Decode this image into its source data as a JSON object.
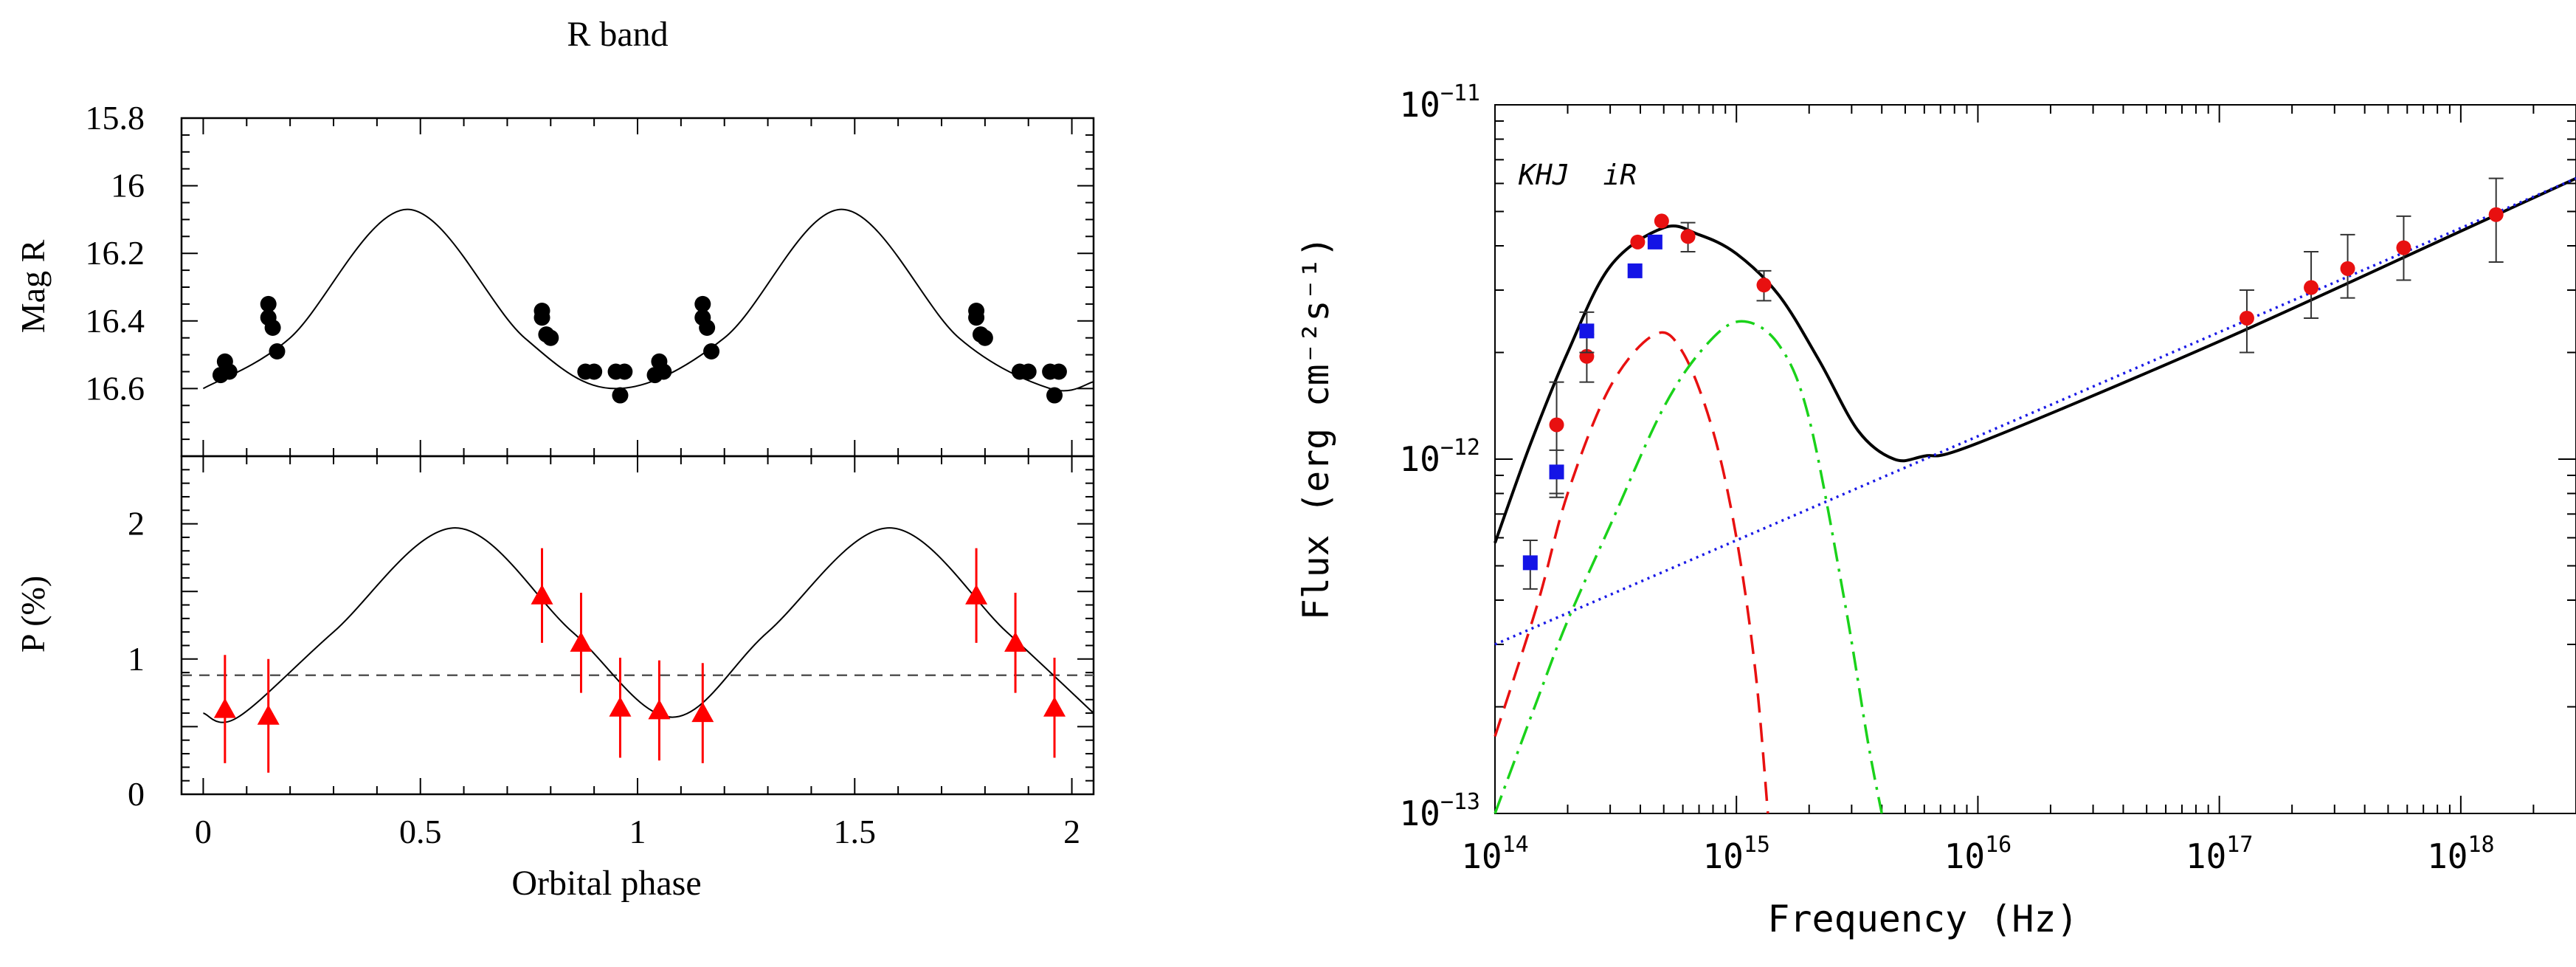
{
  "chart_data": [
    {
      "type": "scatter",
      "title": "R band",
      "xlabel": "Orbital phase",
      "xlim": [
        -0.05,
        2.05
      ],
      "xticks": [
        "0",
        "0.5",
        "1",
        "1.5",
        "2"
      ],
      "xtick_values": [
        0,
        0.5,
        1,
        1.5,
        2
      ],
      "panels": [
        {
          "ylabel": "Mag R",
          "ylim": [
            16.8,
            15.8
          ],
          "y_inverted": true,
          "yticks": [
            "15.8",
            "16",
            "16.2",
            "16.4",
            "16.6"
          ],
          "ytick_values": [
            15.8,
            16.0,
            16.2,
            16.4,
            16.6
          ],
          "series": [
            {
              "marker": "filled-circle",
              "color": "#000000",
              "x": [
                0.04,
                0.05,
                0.06,
                0.15,
                0.15,
                0.16,
                0.17,
                0.78,
                0.78,
                0.79,
                0.8,
                0.88,
                0.9,
                0.95,
                0.96,
                0.97,
                1.04,
                1.05,
                1.06,
                1.15,
                1.15,
                1.16,
                1.17,
                1.78,
                1.78,
                1.79,
                1.8,
                1.88,
                1.9,
                1.95,
                1.96,
                1.97
              ],
              "y": [
                16.56,
                16.52,
                16.55,
                16.35,
                16.39,
                16.42,
                16.49,
                16.37,
                16.39,
                16.44,
                16.45,
                16.55,
                16.55,
                16.55,
                16.62,
                16.55,
                16.56,
                16.52,
                16.55,
                16.35,
                16.39,
                16.42,
                16.49,
                16.37,
                16.39,
                16.44,
                16.45,
                16.55,
                16.55,
                16.55,
                16.62,
                16.55
              ]
            }
          ],
          "model_curve": {
            "style": "solid",
            "color": "#000000",
            "points": [
              [
                0.0,
                16.6
              ],
              [
                0.2,
                16.45
              ],
              [
                0.47,
                16.07
              ],
              [
                0.74,
                16.45
              ],
              [
                0.95,
                16.6
              ],
              [
                1.2,
                16.45
              ],
              [
                1.47,
                16.07
              ],
              [
                1.74,
                16.45
              ],
              [
                1.95,
                16.6
              ],
              [
                2.05,
                16.58
              ]
            ]
          }
        },
        {
          "ylabel": "P (%)",
          "ylim": [
            0,
            2.5
          ],
          "yticks": [
            "0",
            "1",
            "2"
          ],
          "ytick_values": [
            0,
            1,
            2
          ],
          "series": [
            {
              "marker": "filled-triangle",
              "color": "#ff0000",
              "x": [
                0.05,
                0.15,
                0.78,
                0.87,
                0.96,
                1.05,
                1.15,
                1.78,
                1.87,
                1.96
              ],
              "y": [
                0.63,
                0.58,
                1.47,
                1.12,
                0.64,
                0.62,
                0.6,
                1.47,
                1.12,
                0.64
              ],
              "yerr": [
                0.4,
                0.42,
                0.35,
                0.37,
                0.37,
                0.37,
                0.37,
                0.35,
                0.37,
                0.37
              ]
            }
          ],
          "model_curve": {
            "style": "solid",
            "color": "#000000",
            "points": [
              [
                0.0,
                0.6
              ],
              [
                0.08,
                0.57
              ],
              [
                0.3,
                1.2
              ],
              [
                0.58,
                1.97
              ],
              [
                0.85,
                1.2
              ],
              [
                1.08,
                0.57
              ],
              [
                1.3,
                1.2
              ],
              [
                1.58,
                1.97
              ],
              [
                1.85,
                1.2
              ],
              [
                2.05,
                0.6
              ]
            ]
          },
          "reference_line": {
            "y": 0.88,
            "style": "dashed",
            "color": "#555555"
          }
        }
      ]
    },
    {
      "type": "scatter",
      "log_x": true,
      "log_y": true,
      "xlabel": "Frequency (Hz)",
      "ylabel": "Flux (erg cm⁻²s⁻¹)",
      "xlim": [
        100000000000000.0,
        3e+18
      ],
      "ylim": [
        1e-13,
        1e-11
      ],
      "xticks_major": [
        100000000000000.0,
        1000000000000000.0,
        1e+16,
        1e+17,
        1e+18
      ],
      "yticks_major": [
        1e-13,
        1e-12,
        1e-11
      ],
      "xtick_labels": [
        {
          "base": "10",
          "exp": "14"
        },
        {
          "base": "10",
          "exp": "15"
        },
        {
          "base": "10",
          "exp": "16"
        },
        {
          "base": "10",
          "exp": "17"
        },
        {
          "base": "10",
          "exp": "18"
        }
      ],
      "ytick_labels": [
        {
          "base": "10",
          "exp": "−11"
        },
        {
          "base": "10",
          "exp": "−12"
        },
        {
          "base": "10",
          "exp": "−13"
        }
      ],
      "annotation": "KHJ  iR",
      "series": [
        {
          "marker": "circle",
          "color": "#e81010",
          "x": [
            180000000000000.0,
            240000000000000.0,
            390000000000000.0,
            490000000000000.0,
            630000000000000.0,
            1300000000000000.0,
            1.3e+17,
            2.4e+17,
            3.4e+17,
            5.8e+17,
            1.4e+18
          ],
          "y": [
            1.25e-12,
            1.95e-12,
            4.1e-12,
            4.7e-12,
            4.25e-12,
            3.1e-12,
            2.5e-12,
            3.05e-12,
            3.45e-12,
            3.95e-12,
            4.9e-12
          ],
          "err_low": [
            4.5e-13,
            3e-13,
            0,
            0,
            4e-13,
            3e-13,
            5e-13,
            5.5e-13,
            6e-13,
            7.5e-13,
            1.3e-12
          ],
          "err_high": [
            4e-13,
            3e-13,
            0,
            0,
            4e-13,
            3e-13,
            5e-13,
            8e-13,
            8.5e-13,
            9e-13,
            1.3e-12
          ]
        },
        {
          "marker": "square",
          "color": "#1414e6",
          "x": [
            140000000000000.0,
            180000000000000.0,
            240000000000000.0,
            380000000000000.0,
            460000000000000.0
          ],
          "y": [
            5.1e-13,
            9.2e-13,
            2.3e-12,
            3.4e-12,
            4.1e-12
          ],
          "err_low": [
            8e-14,
            1.4e-13,
            3e-13,
            0,
            0
          ],
          "err_high": [
            8e-14,
            1.4e-13,
            3e-13,
            0,
            0
          ]
        }
      ],
      "model_curves": [
        {
          "style": "solid",
          "color": "#000000",
          "points": [
            [
              100000000000000.0,
              5.8e-13
            ],
            [
              140000000000000.0,
              1.1e-12
            ],
            [
              200000000000000.0,
              2e-12
            ],
            [
              300000000000000.0,
              3.5e-12
            ],
            [
              500000000000000.0,
              4.5e-12
            ],
            [
              700000000000000.0,
              4.3e-12
            ],
            [
              1000000000000000.0,
              3.8e-12
            ],
            [
              1500000000000000.0,
              2.9e-12
            ],
            [
              2200000000000000.0,
              1.9e-12
            ],
            [
              3200000000000000.0,
              1.2e-12
            ],
            [
              4500000000000000.0,
              1e-12
            ],
            [
              6000000000000000.0,
              1.02e-12
            ],
            [
              1e+16,
              1.11e-12
            ],
            [
              1e+17,
              2.15e-12
            ],
            [
              1e+18,
              4.4e-12
            ],
            [
              3e+18,
              6.2e-12
            ]
          ]
        },
        {
          "style": "dotted",
          "color": "#1a1ae6",
          "points": [
            [
              100000000000000.0,
              3e-13
            ],
            [
              3e+18,
              6.2e-12
            ]
          ]
        },
        {
          "style": "dashed",
          "color": "#e81010",
          "points": [
            [
              100000000000000.0,
              1.65e-13
            ],
            [
              150000000000000.0,
              3.9e-13
            ],
            [
              200000000000000.0,
              8e-13
            ],
            [
              300000000000000.0,
              1.6e-12
            ],
            [
              460000000000000.0,
              2.25e-12
            ],
            [
              600000000000000.0,
              2e-12
            ],
            [
              800000000000000.0,
              1.2e-12
            ],
            [
              1000000000000000.0,
              6e-13
            ],
            [
              1200000000000000.0,
              2.5e-13
            ],
            [
              1350000000000000.0,
              1e-13
            ]
          ]
        },
        {
          "style": "dashdot",
          "color": "#1ad21a",
          "points": [
            [
              100000000000000.0,
              1e-13
            ],
            [
              150000000000000.0,
              2.1e-13
            ],
            [
              200000000000000.0,
              3.5e-13
            ],
            [
              300000000000000.0,
              6.5e-13
            ],
            [
              500000000000000.0,
              1.4e-12
            ],
            [
              750000000000000.0,
              2.1e-12
            ],
            [
              1050000000000000.0,
              2.45e-12
            ],
            [
              1500000000000000.0,
              2.1e-12
            ],
            [
              2000000000000000.0,
              1.3e-12
            ],
            [
              2800000000000000.0,
              4e-13
            ],
            [
              3500000000000000.0,
              1.6e-13
            ],
            [
              4000000000000000.0,
              1e-13
            ]
          ]
        }
      ]
    }
  ]
}
